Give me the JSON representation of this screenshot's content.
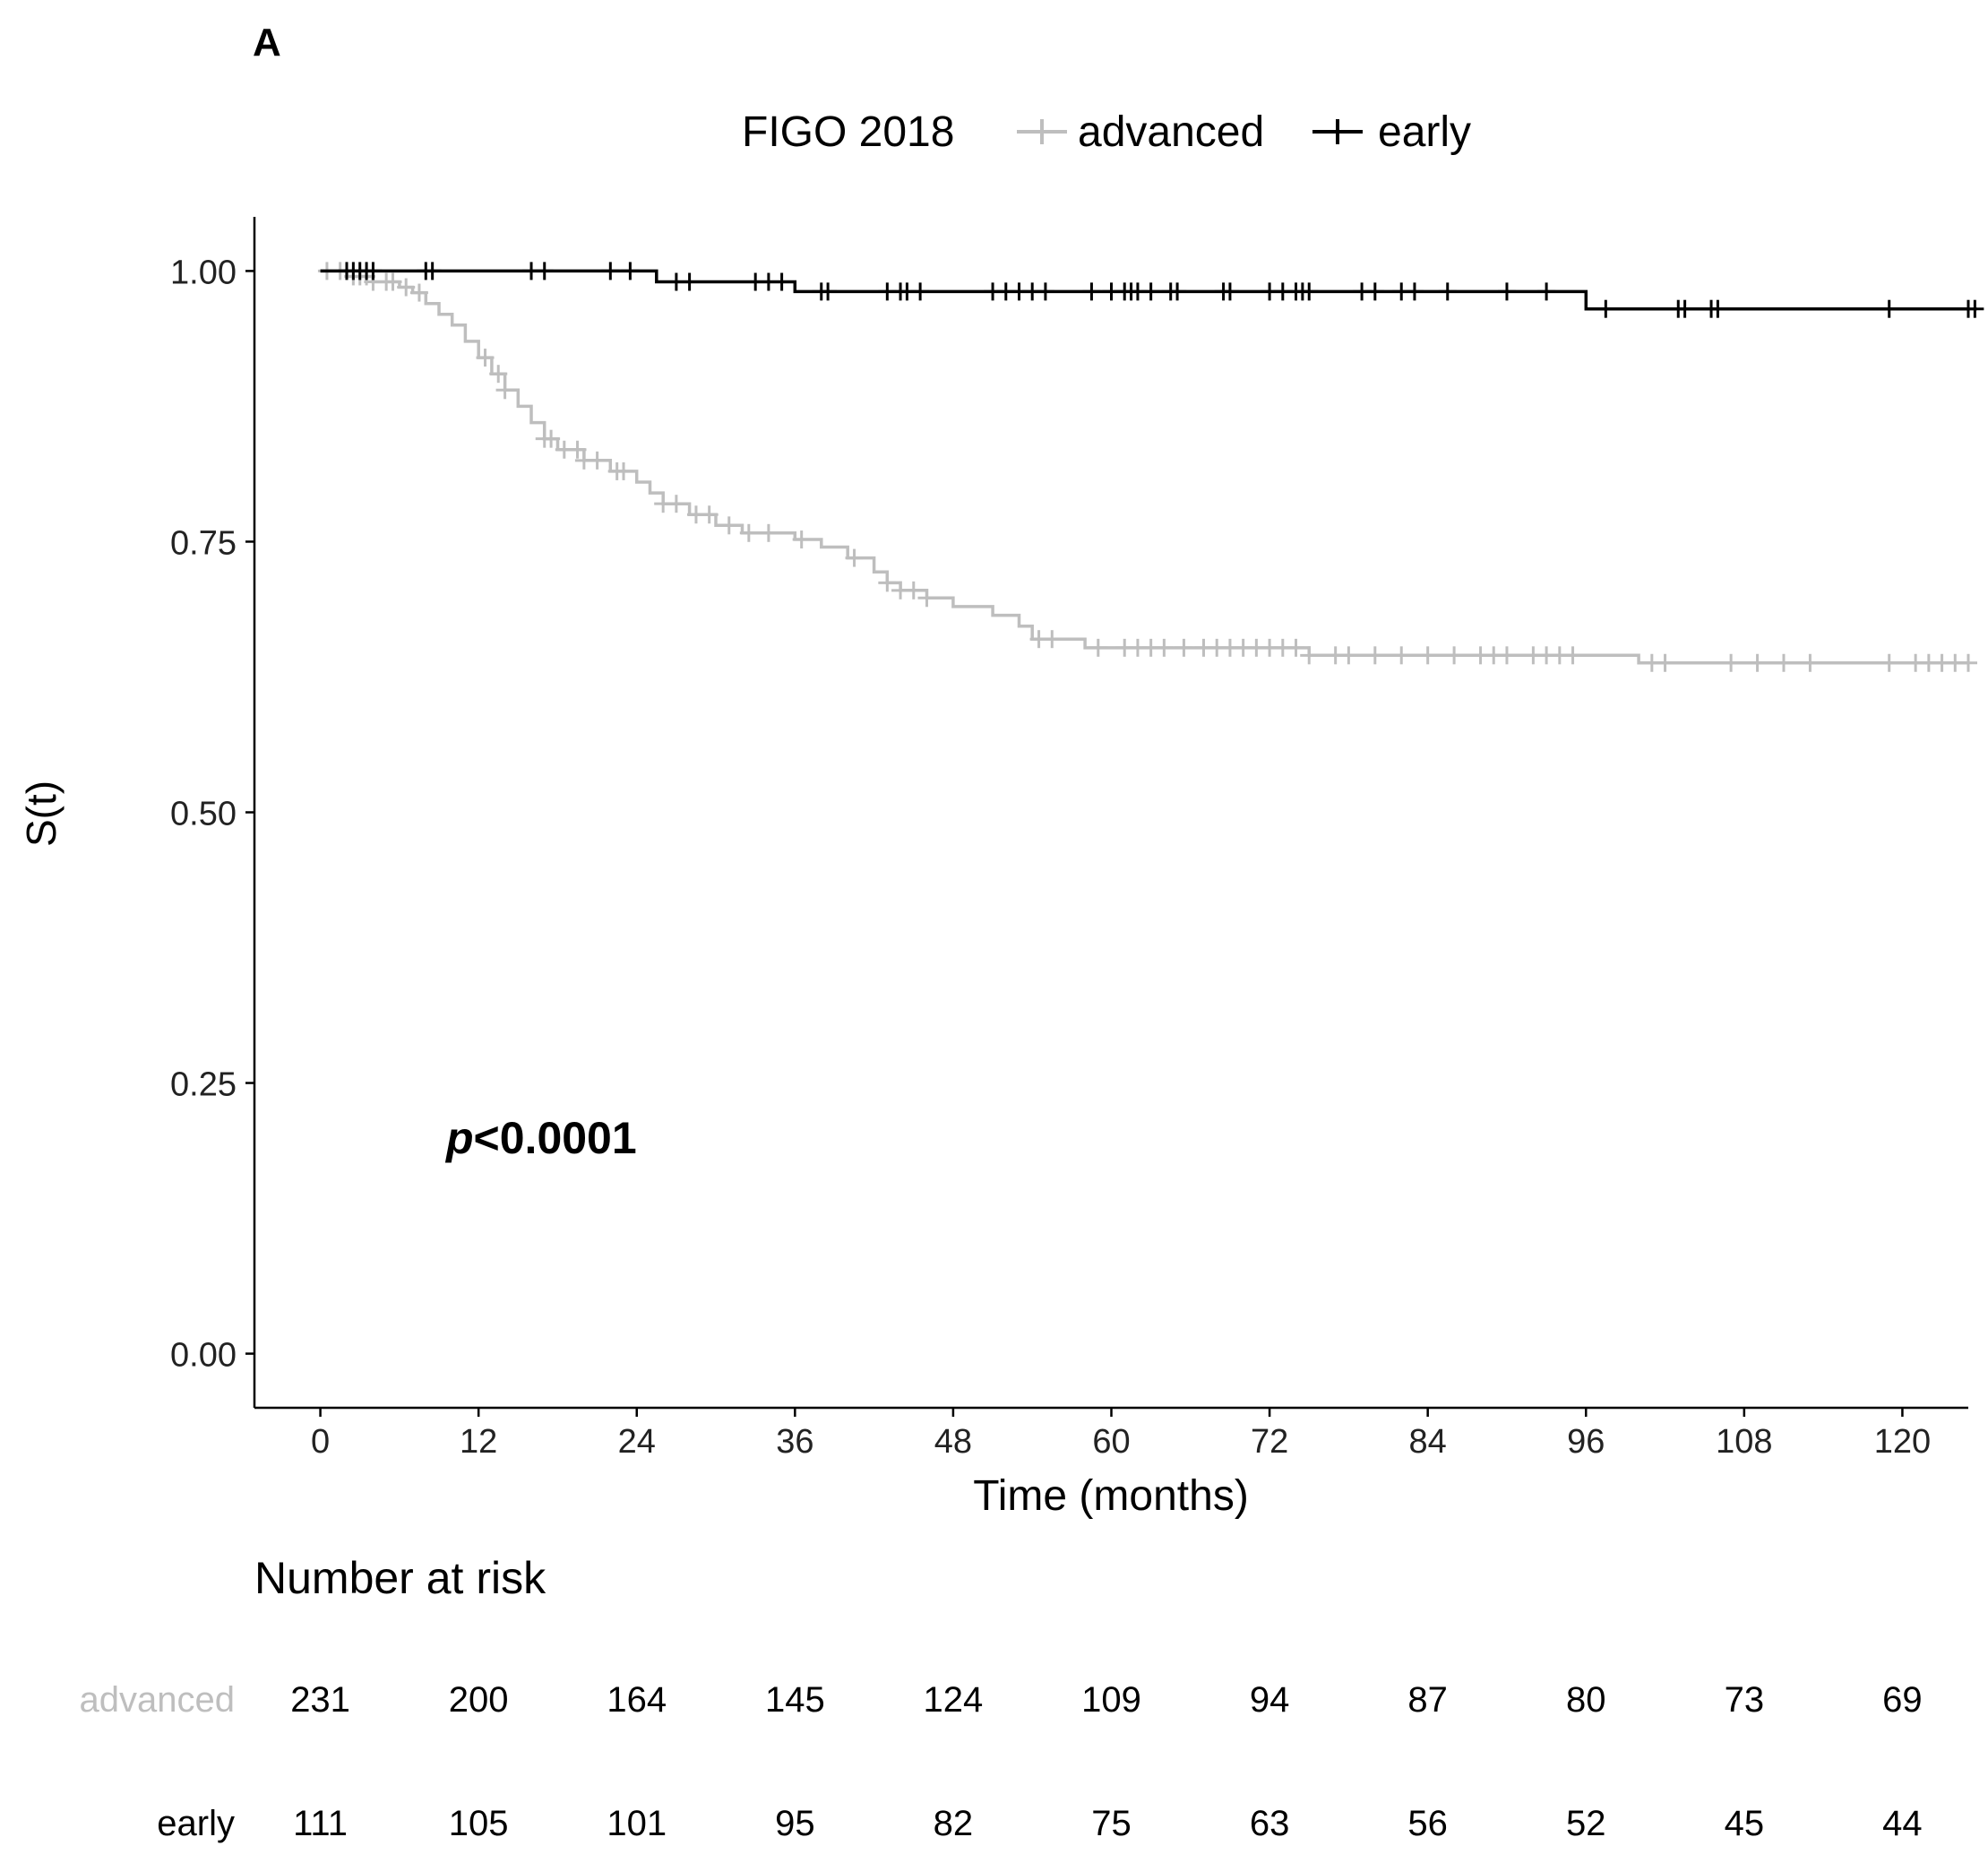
{
  "panel_label": "A",
  "colors": {
    "advanced": "#bebebe",
    "early": "#000000",
    "axis": "#000000"
  },
  "chart_data": {
    "type": "line",
    "subtype": "kaplan-meier",
    "xlabel": "Time (months)",
    "ylabel": "S(t)",
    "xlim": [
      -5,
      125
    ],
    "ylim": [
      -0.05,
      1.05
    ],
    "xticks": [
      0,
      12,
      24,
      36,
      48,
      60,
      72,
      84,
      96,
      108,
      120
    ],
    "yticks": [
      0.0,
      0.25,
      0.5,
      0.75,
      1.0
    ],
    "ytick_labels": [
      "0.00",
      "0.25",
      "0.50",
      "0.75",
      "1.00"
    ],
    "legend": {
      "title": "FIGO 2018",
      "position": "top",
      "entries": [
        "advanced",
        "early"
      ]
    },
    "annotation": {
      "prefix": "p",
      "text": "<0.0001",
      "x": 9,
      "y": 0.19
    },
    "series": [
      {
        "name": "advanced",
        "steps": [
          [
            0,
            1.0
          ],
          [
            2,
            0.995
          ],
          [
            4,
            0.99
          ],
          [
            6,
            0.985
          ],
          [
            7,
            0.98
          ],
          [
            8,
            0.97
          ],
          [
            9,
            0.96
          ],
          [
            10,
            0.95
          ],
          [
            11,
            0.935
          ],
          [
            12,
            0.92
          ],
          [
            13,
            0.905
          ],
          [
            14,
            0.89
          ],
          [
            15,
            0.875
          ],
          [
            16,
            0.86
          ],
          [
            17,
            0.845
          ],
          [
            18,
            0.835
          ],
          [
            20,
            0.825
          ],
          [
            22,
            0.815
          ],
          [
            24,
            0.805
          ],
          [
            25,
            0.795
          ],
          [
            26,
            0.785
          ],
          [
            28,
            0.775
          ],
          [
            30,
            0.765
          ],
          [
            32,
            0.758
          ],
          [
            36,
            0.752
          ],
          [
            38,
            0.745
          ],
          [
            40,
            0.735
          ],
          [
            42,
            0.722
          ],
          [
            43,
            0.712
          ],
          [
            44,
            0.705
          ],
          [
            46,
            0.698
          ],
          [
            48,
            0.69
          ],
          [
            51,
            0.682
          ],
          [
            53,
            0.672
          ],
          [
            54,
            0.66
          ],
          [
            58,
            0.652
          ],
          [
            75,
            0.645
          ],
          [
            100,
            0.638
          ],
          [
            125,
            0.638
          ]
        ],
        "censors": [
          0.5,
          1.5,
          2.5,
          3,
          3.5,
          4,
          5,
          5.5,
          6.5,
          7.5,
          12.5,
          13.5,
          14,
          17,
          17.5,
          18.5,
          19.5,
          20,
          21,
          22.5,
          23,
          26,
          27,
          28.5,
          29.5,
          31,
          32.5,
          34,
          36.5,
          40.5,
          43,
          44,
          45,
          46,
          54.5,
          55.5,
          59,
          61,
          62,
          63,
          64,
          65.5,
          67,
          68,
          69,
          70,
          71,
          72,
          73,
          74,
          75,
          77,
          78,
          80,
          82,
          84,
          86,
          88,
          89,
          90,
          92,
          93,
          94,
          95,
          101,
          102,
          107,
          109,
          111,
          113,
          119,
          121,
          122,
          123,
          124,
          125
        ]
      },
      {
        "name": "early",
        "steps": [
          [
            0,
            1.0
          ],
          [
            25.5,
            0.99
          ],
          [
            36,
            0.981
          ],
          [
            96,
            0.965
          ],
          [
            125,
            0.965
          ]
        ],
        "censors": [
          2,
          2.5,
          3,
          3.5,
          4,
          8,
          8.5,
          16,
          17,
          22,
          23.5,
          27,
          28,
          33,
          34,
          35,
          38,
          38.5,
          43,
          44,
          44.5,
          45.5,
          51,
          52,
          53,
          54,
          55,
          58.5,
          60,
          61,
          61.5,
          62,
          63,
          64.5,
          65,
          68.5,
          69,
          72,
          73,
          74,
          74.5,
          75,
          79,
          80,
          82,
          83,
          85.5,
          90,
          93,
          97.5,
          103,
          103.5,
          105.5,
          106,
          119,
          125,
          125.5
        ]
      }
    ],
    "risk_table": {
      "title": "Number at risk",
      "times": [
        0,
        12,
        24,
        36,
        48,
        60,
        72,
        84,
        96,
        108,
        120
      ],
      "rows": [
        {
          "name": "advanced",
          "values": [
            231,
            200,
            164,
            145,
            124,
            109,
            94,
            87,
            80,
            73,
            69
          ]
        },
        {
          "name": "early",
          "values": [
            111,
            105,
            101,
            95,
            82,
            75,
            63,
            56,
            52,
            45,
            44
          ]
        }
      ]
    }
  }
}
